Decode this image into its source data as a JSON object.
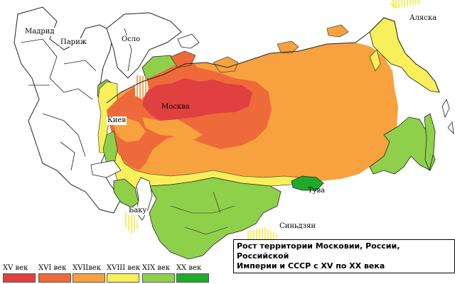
{
  "caption": {
    "line1": "Рост территории Московии, России, Российской",
    "line2": "Империи и СССР с XV по XX века"
  },
  "cities": [
    {
      "name": "Мадрид"
    },
    {
      "name": "Париж"
    },
    {
      "name": "Осло"
    },
    {
      "name": "Москва"
    },
    {
      "name": "Киев"
    },
    {
      "name": "Баку"
    },
    {
      "name": "Тува"
    },
    {
      "name": "Синьдзян"
    },
    {
      "name": "Аляска"
    }
  ],
  "legend": [
    {
      "label": "XV век",
      "color": "#e04040",
      "icon": "swatch-15th-century"
    },
    {
      "label": "XVI век",
      "color": "#ee6a3a",
      "icon": "swatch-16th-century"
    },
    {
      "label": "XVIIвек",
      "color": "#f7a23e",
      "icon": "swatch-17th-century"
    },
    {
      "label": "XVIII век",
      "color": "#f8f05a",
      "icon": "swatch-18th-century"
    },
    {
      "label": "XIX век",
      "color": "#8fd04a",
      "icon": "swatch-19th-century"
    },
    {
      "label": "XX век",
      "color": "#1faa2a",
      "icon": "swatch-20th-century"
    }
  ]
}
